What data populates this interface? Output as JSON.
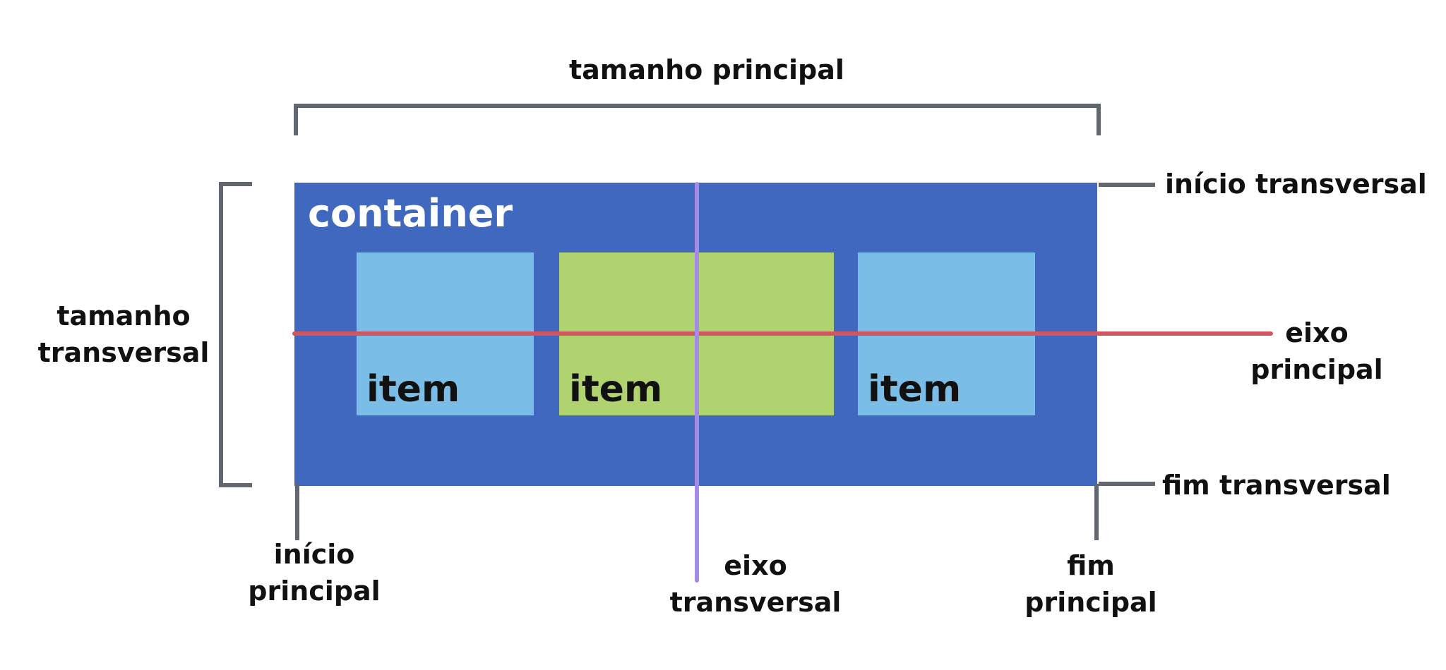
{
  "labels": {
    "main_size": "tamanho principal",
    "cross_size_line1": "tamanho",
    "cross_size_line2": "transversal",
    "cross_start": "início transversal",
    "cross_end": "fim transversal",
    "main_axis_line1": "eixo",
    "main_axis_line2": "principal",
    "main_start_line1": "início",
    "main_start_line2": "principal",
    "cross_axis_line1": "eixo",
    "cross_axis_line2": "transversal",
    "main_end_line1": "fim",
    "main_end_line2": "principal"
  },
  "container": {
    "title": "container"
  },
  "items": [
    {
      "label": "item",
      "color": "#7abde6"
    },
    {
      "label": "item",
      "color": "#b0d26f"
    },
    {
      "label": "item",
      "color": "#7abde6"
    }
  ],
  "colors": {
    "container": "#4068be",
    "bracket": "#626670",
    "main_axis": "#d25562",
    "cross_axis": "#a38be6"
  }
}
